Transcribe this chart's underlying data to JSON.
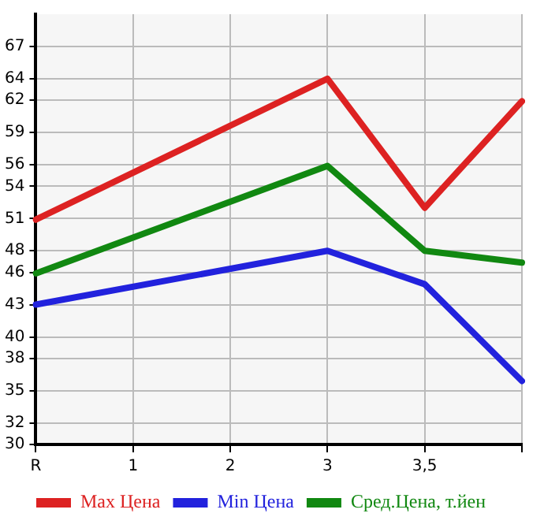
{
  "chart_data": {
    "type": "line",
    "categories": [
      "R",
      "1",
      "2",
      "3",
      "3,5",
      null
    ],
    "series": [
      {
        "name": "Max Цена",
        "color": "#dd2222",
        "values": [
          50.9,
          null,
          null,
          64.0,
          52.0,
          61.9
        ]
      },
      {
        "name": "Min Цена",
        "color": "#2222dd",
        "values": [
          43.0,
          null,
          null,
          48.0,
          44.9,
          35.9
        ]
      },
      {
        "name": "Сред.Цена, т.йен",
        "color": "#118811",
        "values": [
          45.9,
          null,
          null,
          55.9,
          48.0,
          46.9
        ]
      }
    ],
    "ylim": [
      30,
      70
    ],
    "yticks": [
      30,
      32,
      35,
      38,
      40,
      43,
      46,
      48,
      51,
      54,
      56,
      59,
      62,
      64,
      67
    ],
    "grid": true,
    "legend": "bottom",
    "marker": "none",
    "line_style": "solid"
  }
}
